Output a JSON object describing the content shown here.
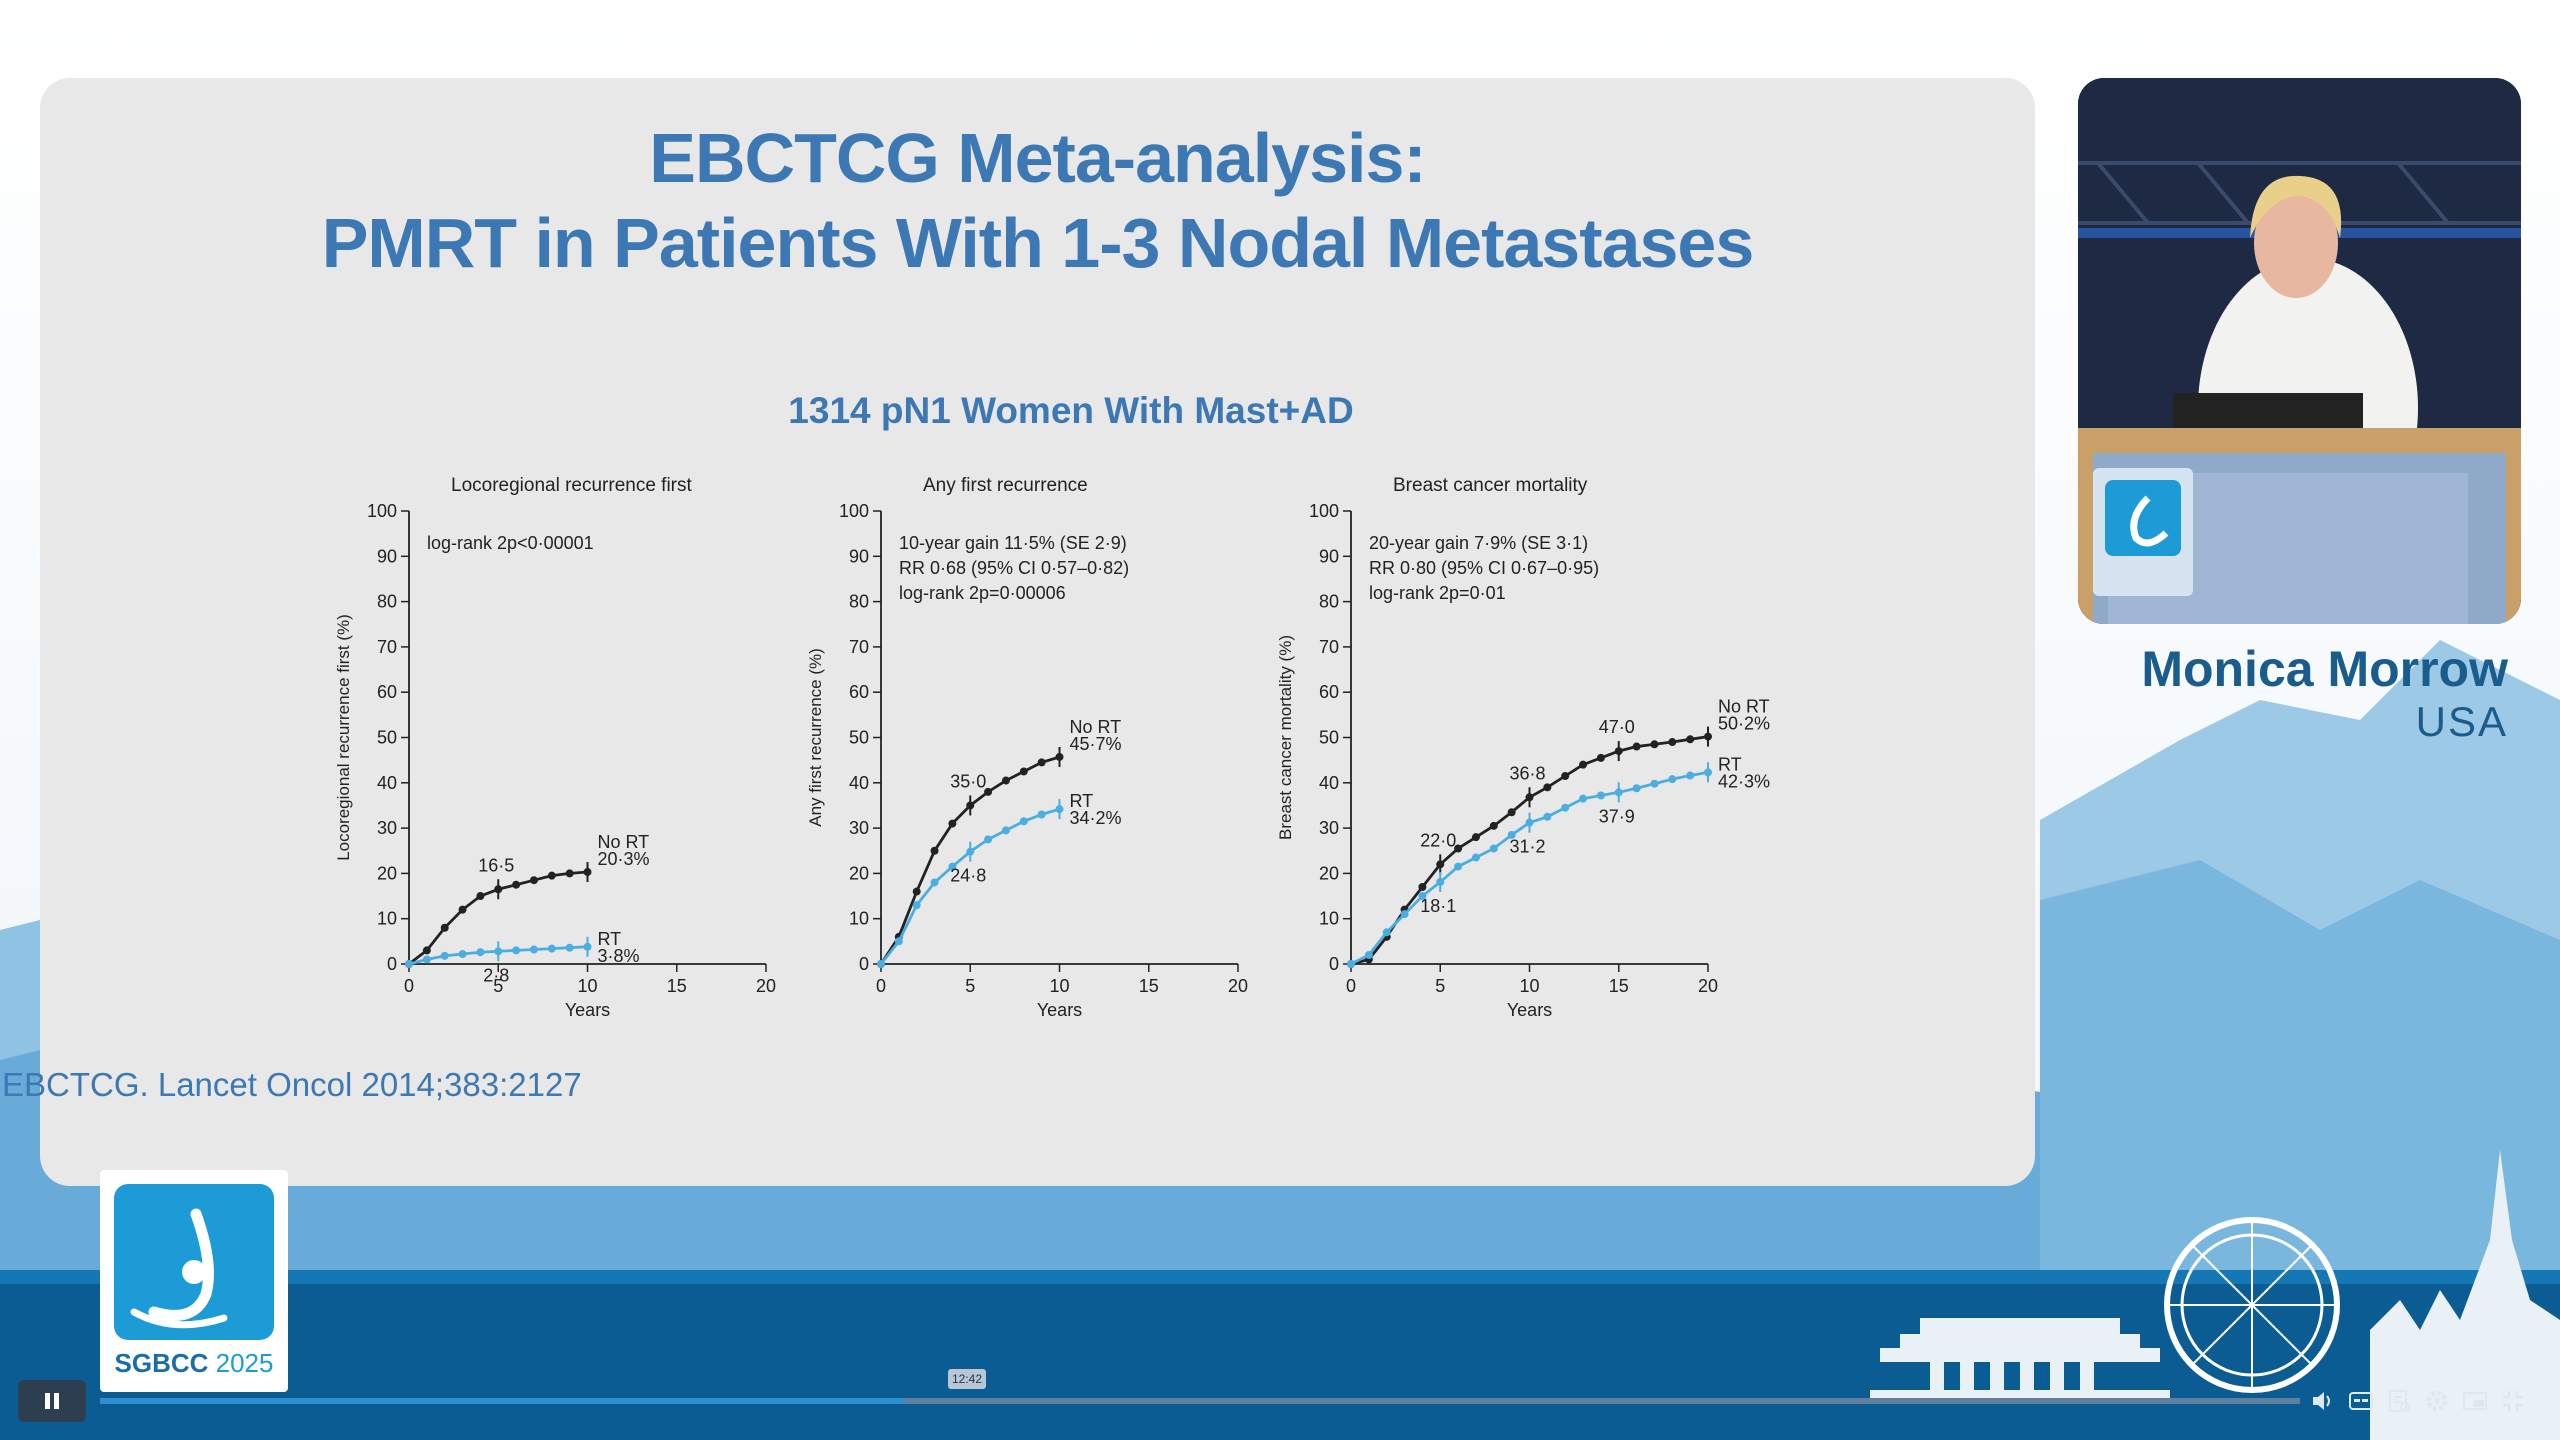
{
  "slide": {
    "title_line1": "EBCTCG Meta-analysis:",
    "title_line2": "PMRT in Patients With 1-3 Nodal Metastases",
    "subtitle": "1314 pN1 Women With Mast+AD",
    "citation": "EBCTCG. Lancet Oncol 2014;383:2127"
  },
  "speaker": {
    "name": "Monica Morrow",
    "country": "USA",
    "podium_logo": "SGBCC"
  },
  "logo": {
    "brand": "SGBCC",
    "year": "2025",
    "icon": "sgbcc-figure-logo"
  },
  "player": {
    "time_tooltip": "12:42",
    "progress_fraction": 0.365
  },
  "colors": {
    "title_blue": "#3c78b4",
    "rt_series": "#4aaee0",
    "no_rt_series": "#222222",
    "slide_bg": "#e8e8e8"
  },
  "icons": [
    "pause-icon",
    "volume-icon",
    "captions-icon",
    "transcript-icon",
    "settings-icon",
    "pip-icon",
    "exit-fullscreen-icon"
  ],
  "chart_data": [
    {
      "type": "line",
      "title": "Locoregional recurrence first",
      "ylabel": "Locoregional recurrence first (%)",
      "xlabel": "Years",
      "xlim": [
        0,
        20
      ],
      "ylim": [
        0,
        100
      ],
      "xticks": [
        0,
        5,
        10,
        15,
        20
      ],
      "yticks": [
        0,
        10,
        20,
        30,
        40,
        50,
        60,
        70,
        80,
        90,
        100
      ],
      "annotation": [
        "log-rank 2p<0·00001"
      ],
      "series": [
        {
          "name": "No RT",
          "end_label": "20·3%",
          "x": [
            0,
            1,
            2,
            3,
            4,
            5,
            6,
            7,
            8,
            9,
            10
          ],
          "y": [
            0,
            3,
            8,
            12,
            15,
            16.5,
            17.5,
            18.5,
            19.5,
            20,
            20.3
          ]
        },
        {
          "name": "RT",
          "end_label": "3·8%",
          "x": [
            0,
            1,
            2,
            3,
            4,
            5,
            6,
            7,
            8,
            9,
            10
          ],
          "y": [
            0,
            1,
            1.8,
            2.2,
            2.6,
            2.8,
            3,
            3.2,
            3.4,
            3.6,
            3.8
          ]
        }
      ],
      "point_labels": [
        {
          "text": "16·5",
          "x": 5,
          "y": 16.5,
          "series": "No RT"
        },
        {
          "text": "2·8",
          "x": 5,
          "y": 2.8,
          "series": "RT"
        }
      ]
    },
    {
      "type": "line",
      "title": "Any first recurrence",
      "ylabel": "Any first recurrence (%)",
      "xlabel": "Years",
      "xlim": [
        0,
        20
      ],
      "ylim": [
        0,
        100
      ],
      "xticks": [
        0,
        5,
        10,
        15,
        20
      ],
      "yticks": [
        0,
        10,
        20,
        30,
        40,
        50,
        60,
        70,
        80,
        90,
        100
      ],
      "annotation": [
        "10-year gain 11·5% (SE 2·9)",
        "RR 0·68 (95% CI 0·57–0·82)",
        "log-rank 2p=0·00006"
      ],
      "series": [
        {
          "name": "No RT",
          "end_label": "45·7%",
          "x": [
            0,
            1,
            2,
            3,
            4,
            5,
            6,
            7,
            8,
            9,
            10
          ],
          "y": [
            0,
            6,
            16,
            25,
            31,
            35,
            38,
            40.5,
            42.5,
            44.5,
            45.7
          ]
        },
        {
          "name": "RT",
          "end_label": "34·2%",
          "x": [
            0,
            1,
            2,
            3,
            4,
            5,
            6,
            7,
            8,
            9,
            10
          ],
          "y": [
            0,
            5,
            13,
            18,
            21.5,
            24.8,
            27.5,
            29.5,
            31.5,
            33,
            34.2
          ]
        }
      ],
      "point_labels": [
        {
          "text": "35·0",
          "x": 5,
          "y": 35,
          "series": "No RT"
        },
        {
          "text": "24·8",
          "x": 5,
          "y": 24.8,
          "series": "RT"
        }
      ]
    },
    {
      "type": "line",
      "title": "Breast cancer mortality",
      "ylabel": "Breast cancer mortality (%)",
      "xlabel": "Years",
      "xlim": [
        0,
        20
      ],
      "ylim": [
        0,
        100
      ],
      "xticks": [
        0,
        5,
        10,
        15,
        20
      ],
      "yticks": [
        0,
        10,
        20,
        30,
        40,
        50,
        60,
        70,
        80,
        90,
        100
      ],
      "annotation": [
        "20-year gain 7·9% (SE 3·1)",
        "RR 0·80 (95% CI 0·67–0·95)",
        "log-rank 2p=0·01"
      ],
      "series": [
        {
          "name": "No RT",
          "end_label": "50·2%",
          "x": [
            0,
            1,
            2,
            3,
            4,
            5,
            6,
            7,
            8,
            9,
            10,
            11,
            12,
            13,
            14,
            15,
            16,
            17,
            18,
            19,
            20
          ],
          "y": [
            0,
            1,
            6,
            12,
            17,
            22,
            25.5,
            28,
            30.5,
            33.5,
            36.8,
            39,
            41.5,
            44,
            45.5,
            47,
            48,
            48.5,
            49,
            49.6,
            50.2
          ]
        },
        {
          "name": "RT",
          "end_label": "42·3%",
          "x": [
            0,
            1,
            2,
            3,
            4,
            5,
            6,
            7,
            8,
            9,
            10,
            11,
            12,
            13,
            14,
            15,
            16,
            17,
            18,
            19,
            20
          ],
          "y": [
            0,
            2,
            7,
            11,
            15,
            18.1,
            21.5,
            23.5,
            25.5,
            28.5,
            31.2,
            32.5,
            34.5,
            36.5,
            37.2,
            37.9,
            38.8,
            39.8,
            40.8,
            41.6,
            42.3
          ]
        }
      ],
      "point_labels": [
        {
          "text": "22·0",
          "x": 5,
          "y": 22,
          "series": "No RT"
        },
        {
          "text": "36·8",
          "x": 10,
          "y": 36.8,
          "series": "No RT"
        },
        {
          "text": "47·0",
          "x": 15,
          "y": 47,
          "series": "No RT"
        },
        {
          "text": "18·1",
          "x": 5,
          "y": 18.1,
          "series": "RT"
        },
        {
          "text": "31·2",
          "x": 10,
          "y": 31.2,
          "series": "RT"
        },
        {
          "text": "37·9",
          "x": 15,
          "y": 37.9,
          "series": "RT"
        }
      ]
    }
  ]
}
